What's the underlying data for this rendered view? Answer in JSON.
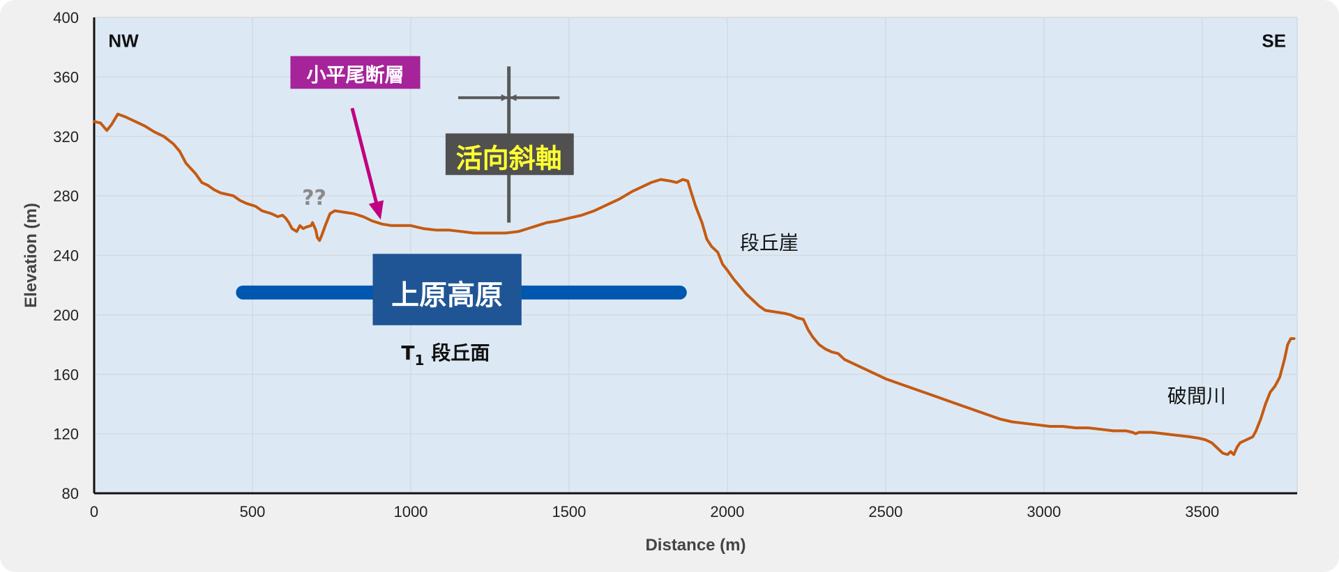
{
  "chart_data": {
    "type": "line",
    "xlabel": "Distance (m)",
    "ylabel": "Elevation (m)",
    "xlim": [
      0,
      3800
    ],
    "ylim": [
      80,
      400
    ],
    "xticks": [
      0,
      500,
      1000,
      1500,
      2000,
      2500,
      3000,
      3500
    ],
    "yticks": [
      80,
      120,
      160,
      200,
      240,
      280,
      320,
      360,
      400
    ],
    "grid": true,
    "series": [
      {
        "color": "#c55a11",
        "points": [
          [
            0,
            330
          ],
          [
            20,
            329
          ],
          [
            40,
            324
          ],
          [
            55,
            328
          ],
          [
            75,
            335
          ],
          [
            100,
            333
          ],
          [
            130,
            330
          ],
          [
            160,
            327
          ],
          [
            190,
            323
          ],
          [
            220,
            320
          ],
          [
            250,
            315
          ],
          [
            270,
            310
          ],
          [
            290,
            302
          ],
          [
            320,
            295
          ],
          [
            340,
            289
          ],
          [
            360,
            287
          ],
          [
            380,
            284
          ],
          [
            400,
            282
          ],
          [
            420,
            281
          ],
          [
            440,
            280
          ],
          [
            460,
            277
          ],
          [
            480,
            275
          ],
          [
            510,
            273
          ],
          [
            530,
            270
          ],
          [
            560,
            268
          ],
          [
            580,
            266
          ],
          [
            595,
            267
          ],
          [
            605,
            265
          ],
          [
            615,
            262
          ],
          [
            625,
            258
          ],
          [
            640,
            256
          ],
          [
            650,
            260
          ],
          [
            660,
            258
          ],
          [
            670,
            259
          ],
          [
            685,
            260
          ],
          [
            690,
            262
          ],
          [
            700,
            257
          ],
          [
            705,
            252
          ],
          [
            712,
            250
          ],
          [
            720,
            254
          ],
          [
            730,
            260
          ],
          [
            745,
            268
          ],
          [
            760,
            270
          ],
          [
            790,
            269
          ],
          [
            820,
            268
          ],
          [
            850,
            266
          ],
          [
            880,
            263
          ],
          [
            910,
            261
          ],
          [
            940,
            260
          ],
          [
            970,
            260
          ],
          [
            1000,
            260
          ],
          [
            1040,
            258
          ],
          [
            1080,
            257
          ],
          [
            1120,
            257
          ],
          [
            1160,
            256
          ],
          [
            1200,
            255
          ],
          [
            1250,
            255
          ],
          [
            1300,
            255
          ],
          [
            1340,
            256
          ],
          [
            1370,
            258
          ],
          [
            1400,
            260
          ],
          [
            1430,
            262
          ],
          [
            1460,
            263
          ],
          [
            1500,
            265
          ],
          [
            1540,
            267
          ],
          [
            1580,
            270
          ],
          [
            1620,
            274
          ],
          [
            1660,
            278
          ],
          [
            1700,
            283
          ],
          [
            1730,
            286
          ],
          [
            1760,
            289
          ],
          [
            1790,
            291
          ],
          [
            1820,
            290
          ],
          [
            1840,
            289
          ],
          [
            1860,
            291
          ],
          [
            1875,
            290
          ],
          [
            1885,
            283
          ],
          [
            1900,
            273
          ],
          [
            1920,
            262
          ],
          [
            1935,
            251
          ],
          [
            1950,
            246
          ],
          [
            1970,
            242
          ],
          [
            1985,
            234
          ],
          [
            2000,
            230
          ],
          [
            2020,
            224
          ],
          [
            2040,
            219
          ],
          [
            2060,
            214
          ],
          [
            2080,
            210
          ],
          [
            2100,
            206
          ],
          [
            2120,
            203
          ],
          [
            2150,
            202
          ],
          [
            2180,
            201
          ],
          [
            2200,
            200
          ],
          [
            2220,
            198
          ],
          [
            2240,
            197
          ],
          [
            2255,
            190
          ],
          [
            2270,
            185
          ],
          [
            2290,
            180
          ],
          [
            2310,
            177
          ],
          [
            2330,
            175
          ],
          [
            2350,
            174
          ],
          [
            2370,
            170
          ],
          [
            2400,
            167
          ],
          [
            2430,
            164
          ],
          [
            2460,
            161
          ],
          [
            2500,
            157
          ],
          [
            2540,
            154
          ],
          [
            2580,
            151
          ],
          [
            2620,
            148
          ],
          [
            2660,
            145
          ],
          [
            2700,
            142
          ],
          [
            2740,
            139
          ],
          [
            2780,
            136
          ],
          [
            2820,
            133
          ],
          [
            2860,
            130
          ],
          [
            2900,
            128
          ],
          [
            2940,
            127
          ],
          [
            2980,
            126
          ],
          [
            3020,
            125
          ],
          [
            3060,
            125
          ],
          [
            3100,
            124
          ],
          [
            3140,
            124
          ],
          [
            3180,
            123
          ],
          [
            3220,
            122
          ],
          [
            3260,
            122
          ],
          [
            3280,
            121
          ],
          [
            3290,
            120
          ],
          [
            3300,
            121
          ],
          [
            3340,
            121
          ],
          [
            3380,
            120
          ],
          [
            3420,
            119
          ],
          [
            3460,
            118
          ],
          [
            3490,
            117
          ],
          [
            3510,
            116
          ],
          [
            3530,
            114
          ],
          [
            3550,
            110
          ],
          [
            3565,
            107
          ],
          [
            3580,
            106
          ],
          [
            3590,
            108
          ],
          [
            3600,
            106
          ],
          [
            3610,
            111
          ],
          [
            3620,
            114
          ],
          [
            3640,
            116
          ],
          [
            3660,
            118
          ],
          [
            3670,
            122
          ],
          [
            3685,
            130
          ],
          [
            3700,
            140
          ],
          [
            3715,
            148
          ],
          [
            3730,
            152
          ],
          [
            3745,
            158
          ],
          [
            3760,
            170
          ],
          [
            3770,
            180
          ],
          [
            3780,
            184
          ],
          [
            3790,
            184
          ]
        ]
      }
    ],
    "annotations": {
      "nw": "NW",
      "se": "SE",
      "fault": "小平尾断層",
      "question": "??",
      "anticline": "活向斜軸",
      "plateau": "上原高原",
      "terrace_t": "T",
      "terrace_sub": "1",
      "terrace_rest": "段丘面",
      "scarp": "段丘崖",
      "river": "破間川"
    }
  },
  "colors": {
    "plot_bg": "#dce9f5",
    "grid": "#d3d9e0",
    "profile": "#c55a11",
    "fault_box": "#a6239a",
    "fault_arrow": "#c0007e",
    "anticline_box": "#505050",
    "anticline_line": "#595959",
    "plateau_bar": "#0057b0",
    "plateau_box": "#1f5594"
  }
}
